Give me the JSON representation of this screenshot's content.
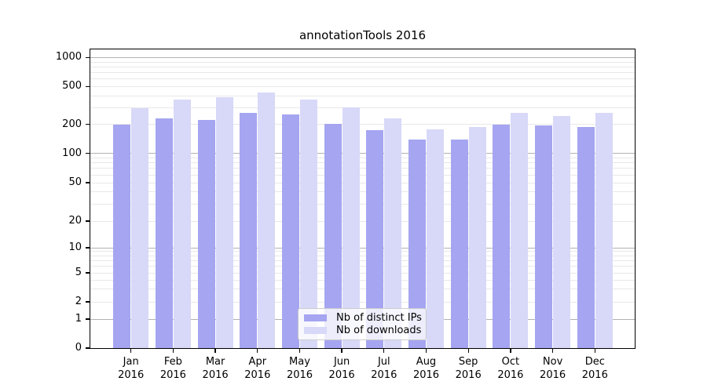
{
  "chart_data": {
    "type": "bar",
    "title": "annotationTools 2016",
    "categories": [
      "Jan",
      "Feb",
      "Mar",
      "Apr",
      "May",
      "Jun",
      "Jul",
      "Aug",
      "Sep",
      "Oct",
      "Nov",
      "Dec"
    ],
    "category_year": "2016",
    "series": [
      {
        "name": "Nb of distinct IPs",
        "color": "#a5a5f1",
        "values": [
          200,
          232,
          224,
          267,
          255,
          202,
          175,
          140,
          139,
          200,
          194,
          190
        ]
      },
      {
        "name": "Nb of downloads",
        "color": "#d8d8f8",
        "values": [
          295,
          365,
          385,
          430,
          365,
          300,
          230,
          178,
          188,
          265,
          246,
          265
        ]
      }
    ],
    "yticks": [
      0,
      1,
      2,
      5,
      10,
      20,
      50,
      100,
      200,
      500,
      1000
    ],
    "ylim": [
      0,
      1000
    ],
    "yscale": "symlog",
    "grid": true,
    "legend_position": "lower center",
    "colors": {
      "grid_minor": "#e8e8e8",
      "grid_major": "#b2b2b2",
      "axis": "#000000",
      "background": "#ffffff"
    }
  }
}
